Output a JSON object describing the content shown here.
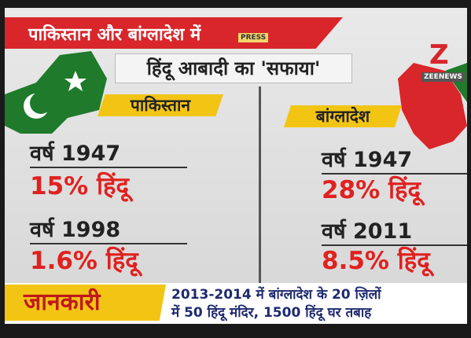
{
  "header": {
    "line1": "पाकिस्तान और बांग्लादेश में",
    "line2": "हिंदू आबादी का 'सफाया'",
    "watermark": "PRESS",
    "channel_logo": "Z",
    "channel_name": "ZEENEWS"
  },
  "panels": [
    {
      "country": "पाकिस्तान",
      "rows": [
        {
          "year": "वर्ष 1947",
          "share": "15% हिंदू"
        },
        {
          "year": "वर्ष 1998",
          "share": "1.6% हिंदू"
        }
      ]
    },
    {
      "country": "बांग्लादेश",
      "rows": [
        {
          "year": "वर्ष 1947",
          "share": "28% हिंदू"
        },
        {
          "year": "वर्ष 2011",
          "share": "8.5% हिंदू"
        }
      ]
    }
  ],
  "footer": {
    "segment": "जानकारी",
    "ticker_line1": "2013-2014 में बांग्लादेश के 20 ज़िलों",
    "ticker_line2": "में 50 हिंदू मंदिर, 1500 हिंदू घर तबाह"
  }
}
